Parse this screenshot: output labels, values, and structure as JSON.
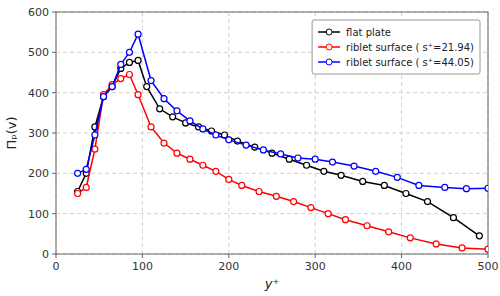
{
  "chart_data": {
    "type": "line",
    "x_label": "y⁺",
    "y_label": "Πₚ(v)",
    "series": [
      {
        "name": "flat plate",
        "color": "#000000",
        "marker": "o",
        "x": [
          25,
          35,
          45,
          55,
          65,
          75,
          85,
          95,
          105,
          120,
          135,
          150,
          165,
          180,
          195,
          210,
          230,
          250,
          270,
          290,
          310,
          330,
          355,
          380,
          405,
          430,
          460,
          490
        ],
        "values": [
          155,
          200,
          315,
          390,
          415,
          460,
          475,
          480,
          415,
          360,
          340,
          325,
          315,
          305,
          295,
          280,
          265,
          250,
          235,
          220,
          205,
          195,
          180,
          170,
          150,
          130,
          90,
          45
        ]
      },
      {
        "name": "riblet surface (  s⁺=21.94)",
        "color": "#ff0000",
        "marker": "o",
        "x": [
          25,
          35,
          45,
          55,
          65,
          75,
          85,
          95,
          110,
          125,
          140,
          155,
          170,
          185,
          200,
          215,
          235,
          255,
          275,
          295,
          315,
          335,
          360,
          385,
          410,
          440,
          470,
          500
        ],
        "values": [
          150,
          165,
          260,
          395,
          420,
          435,
          445,
          395,
          315,
          275,
          250,
          235,
          220,
          205,
          185,
          170,
          155,
          143,
          130,
          115,
          100,
          85,
          70,
          55,
          40,
          25,
          15,
          12
        ]
      },
      {
        "name": "riblet surface (  s⁺=44.05)",
        "color": "#0000ff",
        "marker": "o",
        "x": [
          25,
          35,
          45,
          55,
          65,
          75,
          85,
          95,
          110,
          125,
          140,
          155,
          170,
          185,
          200,
          220,
          240,
          260,
          280,
          300,
          320,
          345,
          370,
          395,
          420,
          450,
          475,
          500
        ],
        "values": [
          200,
          210,
          295,
          390,
          415,
          470,
          500,
          545,
          430,
          385,
          355,
          330,
          310,
          295,
          283,
          270,
          258,
          248,
          238,
          235,
          228,
          218,
          205,
          190,
          170,
          165,
          162,
          163
        ]
      }
    ],
    "xlim": [
      0,
      500
    ],
    "ylim": [
      0,
      600
    ],
    "xticks": [
      0,
      100,
      200,
      300,
      400,
      500
    ],
    "yticks": [
      0,
      100,
      200,
      300,
      400,
      500,
      600
    ],
    "grid": true,
    "legend": "upper right"
  }
}
